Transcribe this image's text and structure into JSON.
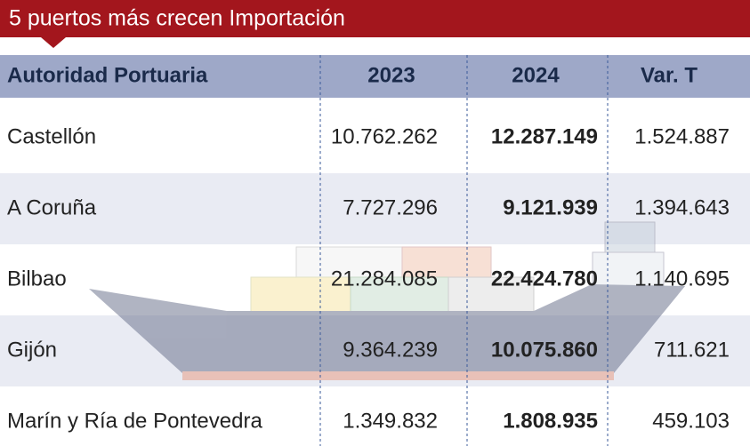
{
  "title": "5 puertos más crecen Importación",
  "table": {
    "header": [
      "Autoridad Portuaria",
      "2023",
      "2024",
      "Var. T"
    ],
    "rows": [
      [
        "Castellón",
        "10.762.262",
        "12.287.149",
        "1.524.887"
      ],
      [
        "A Coruña",
        "7.727.296",
        "9.121.939",
        "1.394.643"
      ],
      [
        "Bilbao",
        "21.284.085",
        "22.424.780",
        "1.140.695"
      ],
      [
        "Gijón",
        "9.364.239",
        "10.075.860",
        "711.621"
      ],
      [
        "Marín y Ría de Pontevedra",
        "1.349.832",
        "1.808.935",
        "459.103"
      ]
    ]
  }
}
